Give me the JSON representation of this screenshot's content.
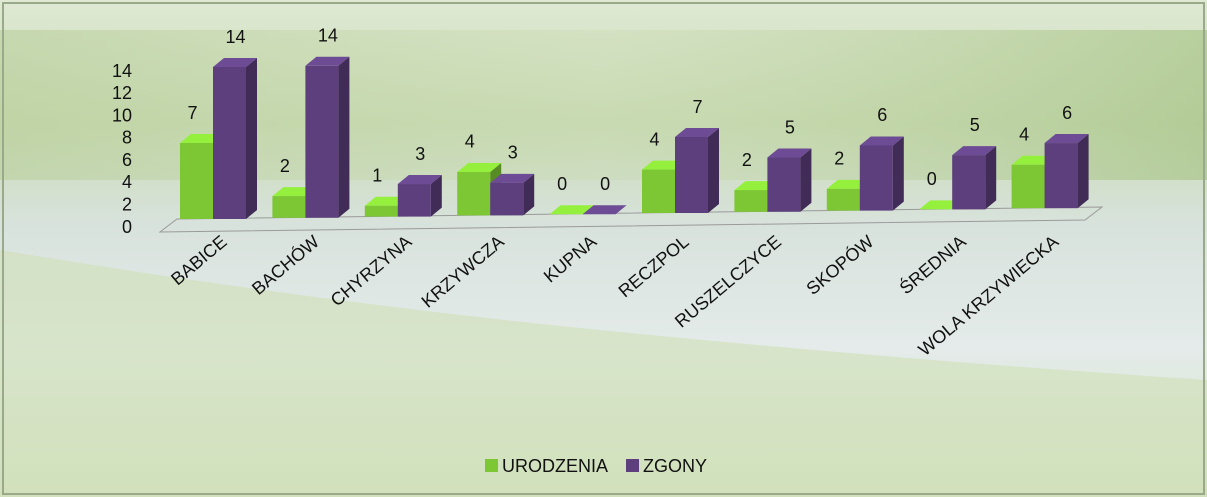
{
  "chart_data": {
    "type": "bar3d",
    "categories": [
      "BABICE",
      "BACHÓW",
      "CHYRZYNA",
      "KRZYWCZA",
      "KUPNA",
      "RECZPOL",
      "RUSZELCZYCE",
      "SKOPÓW",
      "ŚREDNIA",
      "WOLA KRZYWIECKA"
    ],
    "series": [
      {
        "name": "URODZENIA",
        "color": "#7cc733",
        "values": [
          7,
          2,
          1,
          4,
          0,
          4,
          2,
          2,
          0,
          4
        ]
      },
      {
        "name": "ZGONY",
        "color": "#5c3f7c",
        "values": [
          14,
          14,
          3,
          3,
          0,
          7,
          5,
          6,
          5,
          6
        ]
      }
    ],
    "ylim": [
      0,
      14
    ],
    "yticks": [
      0,
      2,
      4,
      6,
      8,
      10,
      12,
      14
    ],
    "legend": "bottom"
  }
}
